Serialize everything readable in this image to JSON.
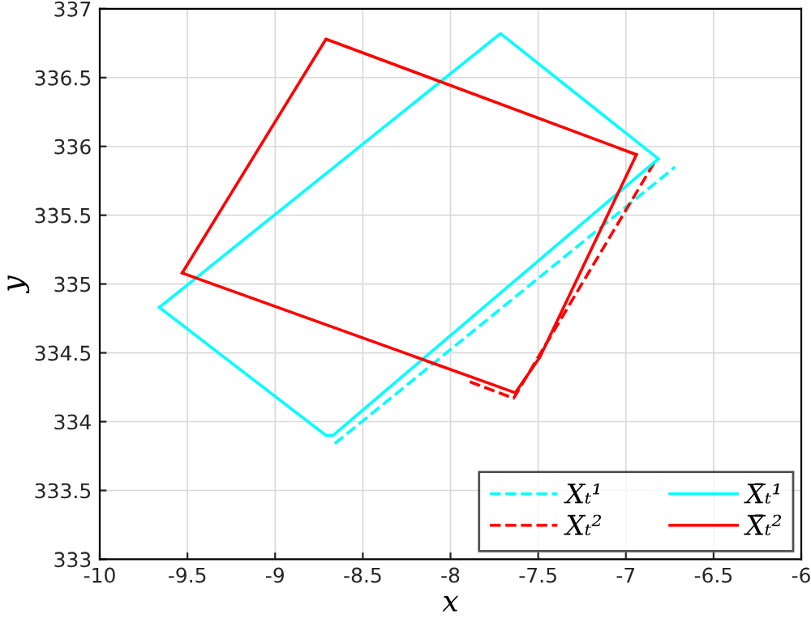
{
  "chart_data": {
    "type": "line",
    "xlabel": "x",
    "ylabel": "y",
    "xlim": [
      -10,
      -6
    ],
    "ylim": [
      333,
      337
    ],
    "xticks": [
      -10,
      -9.5,
      -9,
      -8.5,
      -8,
      -7.5,
      -7,
      -6.5,
      -6
    ],
    "yticks": [
      333,
      333.5,
      334,
      334.5,
      335,
      335.5,
      336,
      336.5,
      337
    ],
    "grid": true,
    "legend": "bottom right",
    "marker": "none",
    "series": [
      {
        "name": "Xₜ¹",
        "color": "#00ffff",
        "line_style": "dashed",
        "x": [
          -8.66,
          -6.72
        ],
        "values": [
          333.84,
          335.85
        ]
      },
      {
        "name": "X̄ₜ¹",
        "color": "#00ffff",
        "line_style": "solid",
        "x": [
          -9.66,
          -7.715,
          -6.815
        ],
        "values": [
          334.83,
          336.82,
          335.91
        ]
      },
      {
        "name": "Xₜ²",
        "color": "#ff0000",
        "line_style": "dashed",
        "x": [
          -7.89,
          -7.64,
          -6.83
        ],
        "values": [
          334.29,
          334.17,
          335.9
        ]
      },
      {
        "name": "X̄ₜ²",
        "color": "#ff0000",
        "line_style": "solid",
        "x": [
          -9.53,
          -8.71,
          -6.94
        ],
        "values": [
          335.08,
          336.78,
          335.94
        ]
      },
      {
        "color": "#00ffff",
        "line_style": "solid",
        "x": [
          -9.66,
          -8.71,
          -8.67,
          -6.815
        ],
        "values": [
          334.83,
          333.9,
          333.9,
          335.91
        ]
      },
      {
        "color": "#ff0000",
        "line_style": "solid",
        "x": [
          -9.53,
          -7.63,
          -7.49,
          -6.94
        ],
        "values": [
          335.08,
          334.21,
          334.47,
          335.94
        ]
      }
    ]
  }
}
